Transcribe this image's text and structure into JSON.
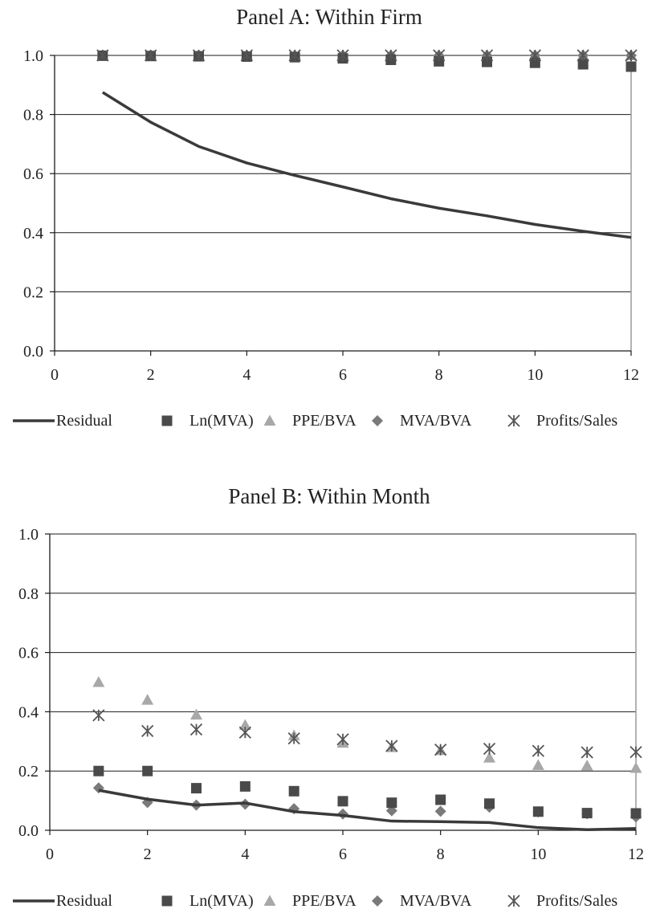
{
  "chart_data": [
    {
      "type": "scatter",
      "title": "Panel A: Within Firm",
      "xlim": [
        0,
        12
      ],
      "ylim": [
        0,
        1
      ],
      "x_ticks": [
        "0",
        "2",
        "4",
        "6",
        "8",
        "10",
        "12"
      ],
      "y_ticks": [
        "0.0",
        "0.2",
        "0.4",
        "0.6",
        "0.8",
        "1.0"
      ],
      "grid": "horizontal",
      "legend_position": "bottom",
      "x": [
        1,
        2,
        3,
        4,
        5,
        6,
        7,
        8,
        9,
        10,
        11,
        12
      ],
      "series": [
        {
          "name": "Residual",
          "mark": "line",
          "color": "#3a3a3a",
          "values": [
            0.875,
            0.774,
            0.692,
            0.636,
            0.594,
            0.555,
            0.515,
            0.483,
            0.457,
            0.428,
            0.405,
            0.384
          ]
        },
        {
          "name": "Ln(MVA)",
          "mark": "square",
          "color": "#4a4a4a",
          "values": [
            0.999,
            0.998,
            0.997,
            0.996,
            0.994,
            0.99,
            0.985,
            0.98,
            0.978,
            0.975,
            0.97,
            0.962
          ]
        },
        {
          "name": "PPE/BVA",
          "mark": "triangle",
          "color": "#a8a8a8",
          "values": [
            1.0,
            1.0,
            1.0,
            1.0,
            1.0,
            1.0,
            1.0,
            1.0,
            1.0,
            1.0,
            1.0,
            1.0
          ]
        },
        {
          "name": "MVA/BVA",
          "mark": "diamond",
          "color": "#7a7a7a",
          "values": [
            1.0,
            1.0,
            1.0,
            1.0,
            1.0,
            1.0,
            1.0,
            1.0,
            1.0,
            1.0,
            1.0,
            1.0
          ]
        },
        {
          "name": "Profits/Sales",
          "mark": "asterisk",
          "color": "#555555",
          "values": [
            1.0,
            1.0,
            1.0,
            1.0,
            1.0,
            1.0,
            1.0,
            1.0,
            1.0,
            1.0,
            1.0,
            1.0
          ]
        }
      ]
    },
    {
      "type": "scatter",
      "title": "Panel B: Within Month",
      "xlim": [
        0,
        12
      ],
      "ylim": [
        0,
        1
      ],
      "x_ticks": [
        "0",
        "2",
        "4",
        "6",
        "8",
        "10",
        "12"
      ],
      "y_ticks": [
        "0.0",
        "0.2",
        "0.4",
        "0.6",
        "0.8",
        "1.0"
      ],
      "grid": "horizontal",
      "legend_position": "bottom",
      "x": [
        1,
        2,
        3,
        4,
        5,
        6,
        7,
        8,
        9,
        10,
        11,
        12
      ],
      "series": [
        {
          "name": "Residual",
          "mark": "line",
          "color": "#3a3a3a",
          "values": [
            0.135,
            0.105,
            0.085,
            0.092,
            0.063,
            0.05,
            0.031,
            0.029,
            0.026,
            0.009,
            0.002,
            0.006
          ]
        },
        {
          "name": "Ln(MVA)",
          "mark": "square",
          "color": "#4a4a4a",
          "values": [
            0.2,
            0.2,
            0.142,
            0.148,
            0.132,
            0.098,
            0.093,
            0.103,
            0.09,
            0.063,
            0.058,
            0.057
          ]
        },
        {
          "name": "PPE/BVA",
          "mark": "triangle",
          "color": "#a8a8a8",
          "values": [
            0.5,
            0.44,
            0.39,
            0.355,
            0.32,
            0.295,
            0.28,
            0.27,
            0.245,
            0.22,
            0.218,
            0.21
          ]
        },
        {
          "name": "MVA/BVA",
          "mark": "diamond",
          "color": "#7a7a7a",
          "values": [
            0.143,
            0.094,
            0.085,
            0.088,
            0.073,
            0.055,
            0.066,
            0.064,
            0.078,
            0.062,
            0.056,
            0.045
          ]
        },
        {
          "name": "Profits/Sales",
          "mark": "asterisk",
          "color": "#555555",
          "values": [
            0.388,
            0.335,
            0.34,
            0.33,
            0.31,
            0.307,
            0.285,
            0.272,
            0.275,
            0.268,
            0.263,
            0.264
          ]
        }
      ]
    }
  ]
}
